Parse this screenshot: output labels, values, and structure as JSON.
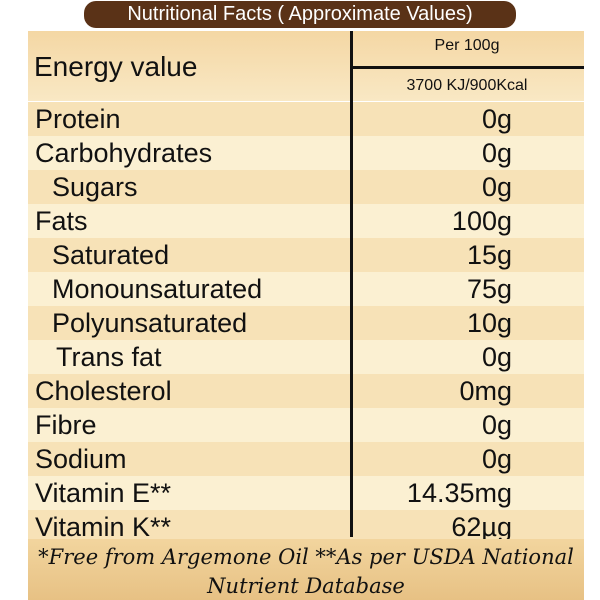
{
  "title": "Nutritional Facts ( Approximate Values)",
  "energy": {
    "label": "Energy  value",
    "per": "Per 100g",
    "value": "3700 KJ/900Kcal"
  },
  "rows": [
    {
      "label": "Protein",
      "value": "0g"
    },
    {
      "label": "Carbohydrates",
      "value": "0g"
    },
    {
      "label": "Sugars",
      "value": "0g"
    },
    {
      "label": "Fats",
      "value": "100g"
    },
    {
      "label": "Saturated",
      "value": "15g"
    },
    {
      "label": "Monounsaturated",
      "value": "75g"
    },
    {
      "label": "Polyunsaturated",
      "value": "10g"
    },
    {
      "label": "Trans fat",
      "value": "0g"
    },
    {
      "label": "Cholesterol",
      "value": "0mg"
    },
    {
      "label": "Fibre",
      "value": "0g"
    },
    {
      "label": "Sodium",
      "value": "0g"
    },
    {
      "label": "Vitamin E**",
      "value": "14.35mg"
    },
    {
      "label": "Vitamin K**",
      "value": "62µg"
    }
  ],
  "footer": {
    "line1": "*Free from Argemone Oil    **As per USDA National",
    "line2": "Nutrient Database"
  }
}
